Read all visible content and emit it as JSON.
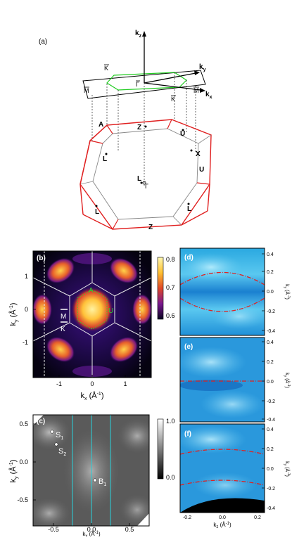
{
  "figure": {
    "panel_a": {
      "label": "(a)",
      "axes": {
        "kz": "k",
        "kz_sub": "z",
        "ky": "k",
        "ky_sub": "y",
        "kx": "k",
        "kx_sub": "x"
      },
      "surface_points": {
        "K_bar_top": "K",
        "M_bar_left": "M",
        "Gamma_bar": "Γ",
        "K_bar_bottom": "K",
        "M_bar_right": "M"
      },
      "bulk_points": {
        "A": "A",
        "Z_top": "Z",
        "U_top": "U",
        "X": "X",
        "L_left": "L",
        "U_right": "U",
        "L_center": "L",
        "Gamma": "Γ",
        "L_lower_left": "L",
        "L_lower_right": "L",
        "Z_bottom": "Z"
      }
    },
    "panel_b": {
      "label": "(b)",
      "xlabel": "k",
      "xlabel_sub": "x",
      "xlabel_unit": " (Å",
      "xlabel_exp": "-1",
      "xlabel_close": ")",
      "ylabel": "k",
      "ylabel_sub": "y",
      "ylabel_unit": " (Å",
      "ylabel_exp": "-1",
      "ylabel_close": ")",
      "xticks": [
        "-1",
        "0",
        "1"
      ],
      "yticks": [
        "1",
        "0",
        "-1"
      ],
      "colorbar_ticks": [
        "0.8",
        "0.7",
        "0.6"
      ],
      "points": {
        "A": "A",
        "U": "U",
        "M": "M",
        "K": "K"
      }
    },
    "panel_c": {
      "label": "(c)",
      "xlabel": "k",
      "xlabel_sub": "x",
      "xlabel_unit": " (Å",
      "xlabel_exp": "-1",
      "xlabel_close": ")",
      "ylabel": "k",
      "ylabel_sub": "y",
      "ylabel_unit": " (Å",
      "ylabel_exp": "-1",
      "ylabel_close": ")",
      "xticks": [
        "-0.5",
        "0.0",
        "0.5"
      ],
      "yticks": [
        "0.5",
        "0.0",
        "-0.5"
      ],
      "colorbar_ticks": [
        "1.0",
        "0.0"
      ],
      "points": {
        "S1": "S",
        "S1_sub": "1",
        "S2": "S",
        "S2_sub": "2",
        "B1": "B",
        "B1_sub": "1"
      }
    },
    "panel_d": {
      "label": "(d)"
    },
    "panel_e": {
      "label": "(e)"
    },
    "panel_f": {
      "label": "(f)"
    },
    "right_axis": {
      "ylabel": "k",
      "ylabel_sub": "y",
      "ylabel_unit": " (Å",
      "ylabel_exp": "-1",
      "ylabel_close": ")",
      "yticks": [
        "0.4",
        "0.2",
        "0.0",
        "-0.2",
        "-0.4"
      ],
      "xlabel": "k",
      "xlabel_sub": "z",
      "xlabel_unit": " (Å",
      "xlabel_exp": "-1",
      "xlabel_close": ")",
      "xticks": [
        "-0.2",
        "0.0",
        "0.2"
      ]
    }
  }
}
